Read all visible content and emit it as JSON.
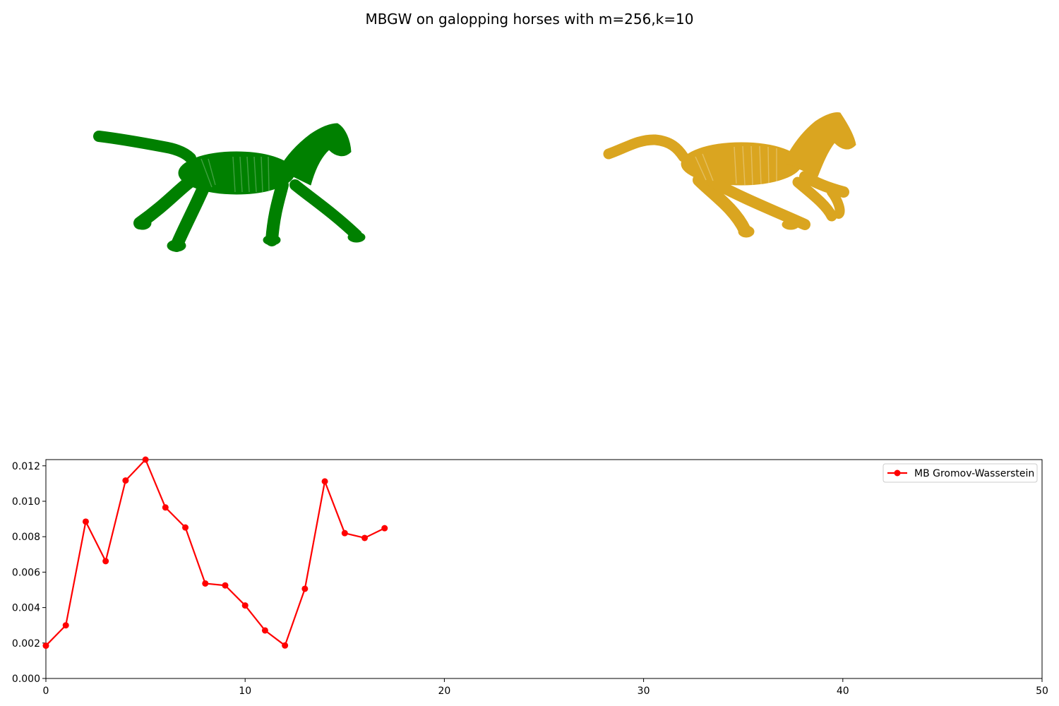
{
  "figure": {
    "title": "MBGW on galopping horses with m=256,k=10"
  },
  "shapes": [
    {
      "name": "left-horse",
      "color": "#008000"
    },
    {
      "name": "right-horse",
      "color": "#daa520"
    }
  ],
  "chart_data": {
    "type": "line",
    "x": [
      0,
      1,
      2,
      3,
      4,
      5,
      6,
      7,
      8,
      9,
      10,
      11,
      12,
      13,
      14,
      15,
      16,
      17
    ],
    "series": [
      {
        "name": "MB Gromov-Wasserstein",
        "color": "#ff0000",
        "marker": "circle",
        "values": [
          0.00185,
          0.003,
          0.00885,
          0.00662,
          0.01117,
          0.01235,
          0.00965,
          0.00852,
          0.00536,
          0.00525,
          0.00412,
          0.00271,
          0.00186,
          0.00506,
          0.01112,
          0.0082,
          0.00793,
          0.00848
        ]
      }
    ],
    "xlim": [
      0,
      50
    ],
    "ylim": [
      0,
      0.01235
    ],
    "xticks": [
      0,
      10,
      20,
      30,
      40,
      50
    ],
    "xtick_labels": [
      "0",
      "10",
      "20",
      "30",
      "40",
      "50"
    ],
    "yticks": [
      0,
      0.002,
      0.004,
      0.006,
      0.008,
      0.01,
      0.012
    ],
    "ytick_labels": [
      "0.000",
      "0.002",
      "0.004",
      "0.006",
      "0.008",
      "0.010",
      "0.012"
    ],
    "legend_position": "top-right",
    "grid": false
  }
}
